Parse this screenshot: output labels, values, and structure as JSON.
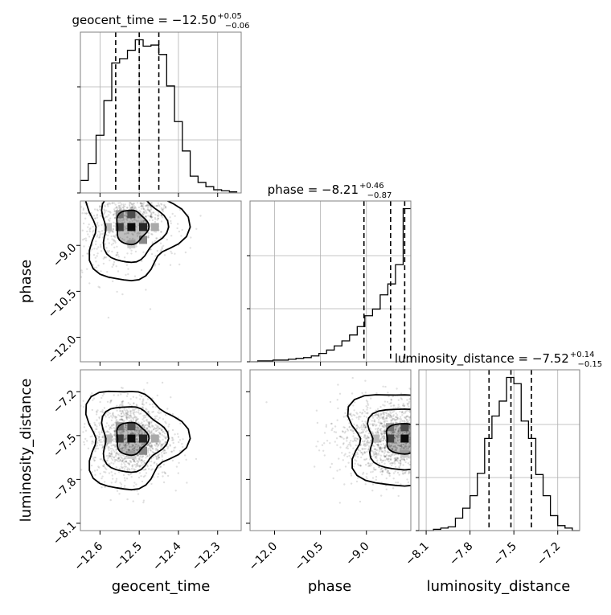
{
  "chart_data": {
    "type": "corner",
    "parameters": [
      {
        "name": "geocent_time",
        "axis_label": "geocent_time",
        "range": [
          -12.65,
          -12.24
        ],
        "ticks": [
          -12.6,
          -12.5,
          -12.4,
          -12.3
        ],
        "tick_labels": [
          "−12.6",
          "−12.5",
          "−12.4",
          "−12.3"
        ],
        "quantiles": [
          -12.56,
          -12.5,
          -12.45
        ]
      },
      {
        "name": "phase",
        "axis_label": "phase",
        "range": [
          -12.8,
          -7.55
        ],
        "ticks": [
          -12.0,
          -10.5,
          -9.0
        ],
        "tick_labels": [
          "−12.0",
          "−10.5",
          "−9.0"
        ],
        "quantiles": [
          -9.08,
          -8.21,
          -7.75
        ]
      },
      {
        "name": "luminosity_distance",
        "axis_label": "luminosity_distance",
        "range": [
          -8.15,
          -7.05
        ],
        "ticks": [
          -8.1,
          -7.8,
          -7.5,
          -7.2
        ],
        "tick_labels": [
          "−8.1",
          "−7.8",
          "−7.5",
          "−7.2"
        ],
        "quantiles": [
          -7.67,
          -7.52,
          -7.38
        ]
      }
    ],
    "titles": [
      {
        "base": "geocent_time = −12.50",
        "sup": "+0.05",
        "sub": "−0.06"
      },
      {
        "base": "phase = −8.21",
        "sup": "+0.46",
        "sub": "−0.87"
      },
      {
        "base": "luminosity_distance = −7.52",
        "sup": "+0.14",
        "sub": "−0.15"
      }
    ],
    "histograms": [
      {
        "param": "geocent_time",
        "bin_edges": [
          -12.65,
          -12.63,
          -12.61,
          -12.59,
          -12.57,
          -12.55,
          -12.53,
          -12.51,
          -12.49,
          -12.47,
          -12.45,
          -12.43,
          -12.41,
          -12.39,
          -12.37,
          -12.35,
          -12.33,
          -12.31,
          -12.29,
          -12.27,
          -12.25
        ],
        "counts": [
          12,
          28,
          55,
          88,
          124,
          128,
          136,
          146,
          140,
          141,
          132,
          102,
          68,
          40,
          16,
          10,
          6,
          3,
          2,
          1
        ]
      },
      {
        "param": "phase",
        "bin_edges": [
          -12.8,
          -12.55,
          -12.3,
          -12.05,
          -11.8,
          -11.55,
          -11.3,
          -11.05,
          -10.8,
          -10.55,
          -10.3,
          -10.05,
          -9.8,
          -9.55,
          -9.3,
          -9.05,
          -8.8,
          -8.55,
          -8.3,
          -8.05,
          -7.8,
          -7.55
        ],
        "counts": [
          0,
          1,
          1,
          2,
          2,
          3,
          4,
          5,
          7,
          10,
          14,
          19,
          25,
          32,
          42,
          55,
          63,
          80,
          93,
          116,
          183
        ]
      },
      {
        "param": "luminosity_distance",
        "bin_edges": [
          -8.15,
          -8.1,
          -8.05,
          -8.0,
          -7.95,
          -7.9,
          -7.85,
          -7.8,
          -7.75,
          -7.7,
          -7.65,
          -7.6,
          -7.55,
          -7.5,
          -7.45,
          -7.4,
          -7.35,
          -7.3,
          -7.25,
          -7.2,
          -7.15,
          -7.1,
          -7.05
        ],
        "counts": [
          0,
          0,
          1,
          2,
          3,
          10,
          18,
          28,
          46,
          74,
          92,
          104,
          123,
          118,
          88,
          74,
          45,
          28,
          12,
          4,
          2,
          0
        ]
      }
    ],
    "grid": true,
    "quantile_lines": "dashed"
  }
}
